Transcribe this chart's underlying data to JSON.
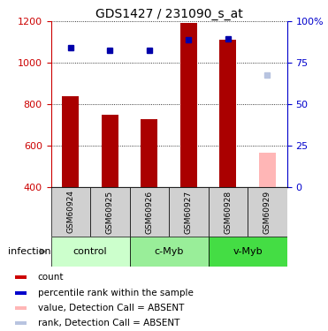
{
  "title": "GDS1427 / 231090_s_at",
  "samples": [
    "GSM60924",
    "GSM60925",
    "GSM60926",
    "GSM60927",
    "GSM60928",
    "GSM60929"
  ],
  "bar_values": [
    840,
    748,
    730,
    1195,
    1112,
    null
  ],
  "absent_bar_value": 565,
  "absent_bar_color": "#ffb6b6",
  "dot_values": [
    1075,
    1062,
    1062,
    1112,
    1115,
    null
  ],
  "absent_dot_value": 940,
  "absent_dot_color": "#b8c4e0",
  "groups": [
    {
      "label": "control",
      "start": 0,
      "end": 2,
      "color": "#ccffcc"
    },
    {
      "label": "c-Myb",
      "start": 2,
      "end": 4,
      "color": "#99ee99"
    },
    {
      "label": "v-Myb",
      "start": 4,
      "end": 6,
      "color": "#44dd44"
    }
  ],
  "ylim": [
    400,
    1200
  ],
  "yticks_left": [
    400,
    600,
    800,
    1000,
    1200
  ],
  "right_pcts": [
    0,
    25,
    50,
    75,
    100
  ],
  "bar_color": "#aa0000",
  "dot_color": "#0000aa",
  "title_fontsize": 10,
  "left_color": "#cc0000",
  "right_color": "#0000cc",
  "legend_items": [
    {
      "color": "#cc0000",
      "label": "count"
    },
    {
      "color": "#0000cc",
      "label": "percentile rank within the sample"
    },
    {
      "color": "#ffb6b6",
      "label": "value, Detection Call = ABSENT"
    },
    {
      "color": "#b8c4e0",
      "label": "rank, Detection Call = ABSENT"
    }
  ]
}
